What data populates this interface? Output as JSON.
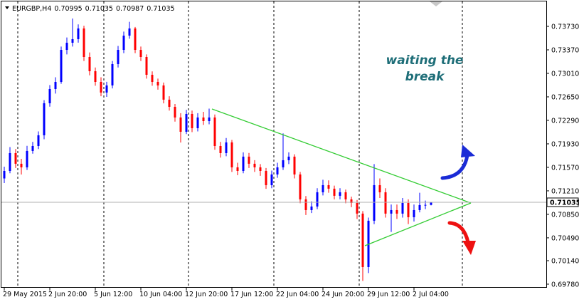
{
  "header": {
    "symbol": "EURGBP,H4",
    "values": [
      0.70995,
      0.71035,
      0.70987,
      0.71035
    ]
  },
  "annotation": "waiting the break",
  "chart_data": {
    "type": "candlestick",
    "up_color": "#0000ff",
    "down_color": "#ff0000",
    "categories": [
      "29 May 2015",
      null,
      null,
      null,
      null,
      null,
      null,
      null,
      "2 Jun 20:00",
      null,
      null,
      null,
      null,
      null,
      null,
      null,
      "5 Jun 12:00",
      null,
      null,
      null,
      null,
      null,
      null,
      null,
      "10 Jun 04:00",
      null,
      null,
      null,
      null,
      null,
      null,
      null,
      "12 Jun 20:00",
      null,
      null,
      null,
      null,
      null,
      null,
      null,
      "17 Jun 12:00",
      null,
      null,
      null,
      null,
      null,
      null,
      null,
      "22 Jun 04:00",
      null,
      null,
      null,
      null,
      null,
      null,
      null,
      "24 Jun 20:00",
      null,
      null,
      null,
      null,
      null,
      null,
      null,
      "29 Jun 12:00",
      null,
      null,
      null,
      null,
      null,
      null,
      null,
      "2 Jul 04:00",
      null,
      null,
      null
    ],
    "open": [
      0.714,
      0.71515,
      0.71788,
      0.71625,
      0.7157,
      0.71821,
      0.71897,
      0.72061,
      0.72552,
      0.7277,
      0.72879,
      0.7337,
      0.73479,
      0.73534,
      0.73698,
      0.73261,
      0.73043,
      0.72879,
      0.72716,
      0.72825,
      0.73152,
      0.7337,
      0.73588,
      0.73698,
      0.7337,
      0.73261,
      0.72988,
      0.72879,
      0.72825,
      0.72607,
      0.72497,
      0.72334,
      0.72115,
      0.72388,
      0.7217,
      0.72334,
      0.72279,
      0.72334,
      0.71897,
      0.71788,
      0.71952,
      0.7157,
      0.71515,
      0.71734,
      0.71625,
      0.7157,
      0.71515,
      0.71297,
      0.71461,
      0.7157,
      0.71679,
      0.71734,
      0.71461,
      0.71079,
      0.70915,
      0.7097,
      0.71188,
      0.71297,
      0.71243,
      0.71134,
      0.71188,
      0.71079,
      0.71024,
      0.70861,
      0.70042,
      0.70752,
      0.71297,
      0.71188,
      0.70861,
      0.70915,
      0.70861,
      0.71024,
      0.70806,
      0.70915,
      0.70992,
      0.70995
    ],
    "high": [
      0.7158,
      0.7188,
      0.7185,
      0.717,
      0.719,
      0.7196,
      0.7212,
      0.726,
      0.7283,
      0.7295,
      0.7342,
      0.7356,
      0.7385,
      0.7376,
      0.7374,
      0.7333,
      0.731,
      0.7295,
      0.7288,
      0.732,
      0.7343,
      0.7365,
      0.738,
      0.7372,
      0.7342,
      0.733,
      0.7304,
      0.7293,
      0.7287,
      0.7266,
      0.7254,
      0.724,
      0.7245,
      0.7244,
      0.724,
      0.7242,
      0.7247,
      0.7238,
      0.7196,
      0.7202,
      0.7199,
      0.7164,
      0.718,
      0.7179,
      0.7168,
      0.7162,
      0.7156,
      0.7152,
      0.7164,
      0.7209,
      0.718,
      0.7177,
      0.715,
      0.7113,
      0.7105,
      0.7125,
      0.7138,
      0.7137,
      0.7129,
      0.7125,
      0.7123,
      0.7112,
      0.7107,
      0.709,
      0.708,
      0.7162,
      0.714,
      0.7125,
      0.71,
      0.71,
      0.711,
      0.7108,
      0.71,
      0.7118,
      0.7106,
      0.71035
    ],
    "low": [
      0.7133,
      0.7148,
      0.7156,
      0.7146,
      0.7153,
      0.7178,
      0.7185,
      0.72,
      0.725,
      0.727,
      0.7285,
      0.733,
      0.7342,
      0.7348,
      0.732,
      0.7298,
      0.7282,
      0.7266,
      0.7265,
      0.7278,
      0.731,
      0.7332,
      0.7354,
      0.7332,
      0.732,
      0.7293,
      0.7282,
      0.7276,
      0.7255,
      0.7244,
      0.7227,
      0.7195,
      0.7208,
      0.7211,
      0.7212,
      0.7222,
      0.7223,
      0.7184,
      0.7172,
      0.7174,
      0.715,
      0.7145,
      0.7148,
      0.7156,
      0.715,
      0.7144,
      0.7124,
      0.7125,
      0.7141,
      0.7153,
      0.7162,
      0.714,
      0.7102,
      0.7084,
      0.7087,
      0.7093,
      0.7114,
      0.7118,
      0.7108,
      0.7108,
      0.7102,
      0.7096,
      0.7078,
      0.6983,
      0.6995,
      0.707,
      0.711,
      0.708,
      0.7058,
      0.7078,
      0.708,
      0.707,
      0.7074,
      0.7088,
      0.7093,
      0.70987
    ],
    "close": [
      0.71515,
      0.71788,
      0.71625,
      0.7157,
      0.71821,
      0.71897,
      0.72061,
      0.72552,
      0.7277,
      0.72879,
      0.7337,
      0.73479,
      0.73534,
      0.73698,
      0.73261,
      0.73043,
      0.72879,
      0.72716,
      0.72825,
      0.73152,
      0.7337,
      0.73588,
      0.73698,
      0.7337,
      0.73261,
      0.72988,
      0.72879,
      0.72825,
      0.72607,
      0.72497,
      0.72334,
      0.72115,
      0.72388,
      0.7217,
      0.72334,
      0.72279,
      0.72334,
      0.71897,
      0.71788,
      0.71952,
      0.7157,
      0.71515,
      0.71734,
      0.71625,
      0.7157,
      0.71515,
      0.71297,
      0.71461,
      0.7157,
      0.71679,
      0.71734,
      0.71461,
      0.71079,
      0.70915,
      0.7097,
      0.71188,
      0.71297,
      0.71243,
      0.71134,
      0.71188,
      0.71079,
      0.71024,
      0.70861,
      0.70042,
      0.70752,
      0.71297,
      0.71188,
      0.70861,
      0.70915,
      0.70861,
      0.71024,
      0.70806,
      0.70915,
      0.70992,
      0.70995,
      0.71035
    ],
    "current_price": 0.71035,
    "ylim": [
      0.69736,
      0.74134
    ],
    "yticks": [
      {
        "value": 0.7373,
        "label": "0.73730"
      },
      {
        "value": 0.7337,
        "label": "0.73370"
      },
      {
        "value": 0.7301,
        "label": "0.73010"
      },
      {
        "value": 0.7265,
        "label": "0.72650"
      },
      {
        "value": 0.7229,
        "label": "0.72290"
      },
      {
        "value": 0.7193,
        "label": "0.71930"
      },
      {
        "value": 0.7157,
        "label": "0.71570"
      },
      {
        "value": 0.7121,
        "label": "0.71210"
      },
      {
        "value": 0.7085,
        "label": "0.70850"
      },
      {
        "value": 0.7049,
        "label": "0.70490"
      },
      {
        "value": 0.7014,
        "label": "0.70140"
      },
      {
        "value": 0.6978,
        "label": "0.69780"
      }
    ]
  }
}
